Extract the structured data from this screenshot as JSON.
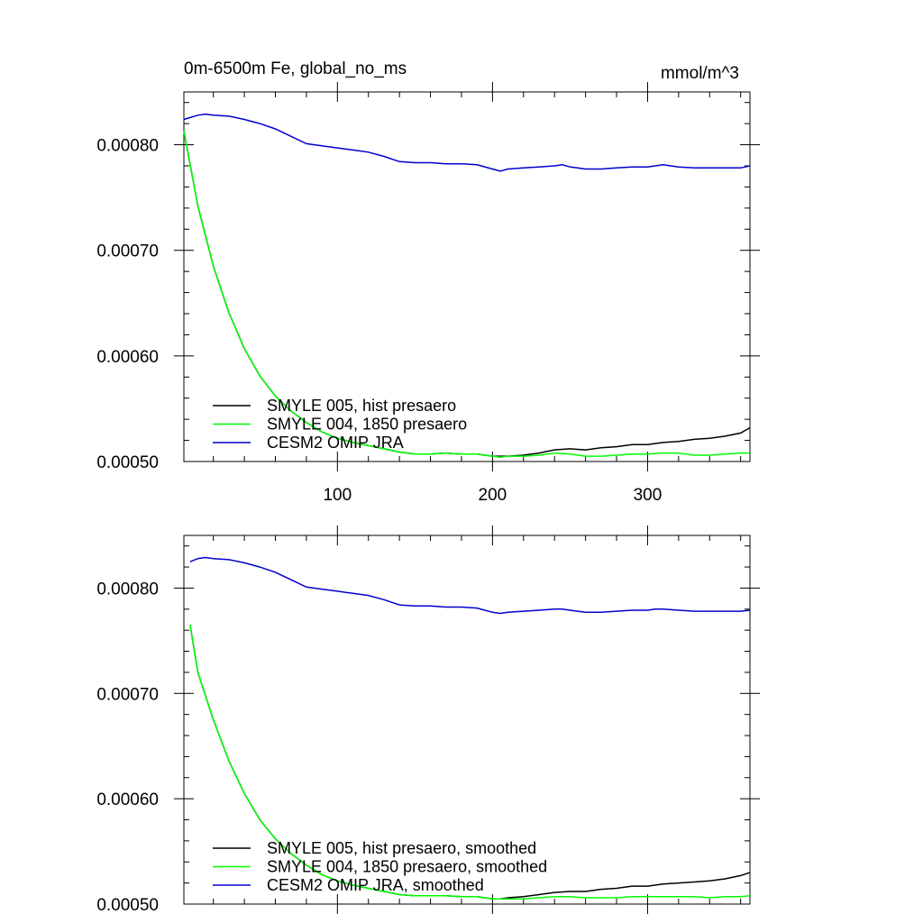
{
  "colors": {
    "black": "#000000",
    "green": "#00ff00",
    "blue": "#0000cc"
  },
  "chart_data": [
    {
      "type": "line",
      "title": "0m-6500m Fe, global_no_ms",
      "units_label": "mmol/m^3",
      "xlabel": "",
      "ylabel": "",
      "xlim": [
        1,
        366
      ],
      "ylim": [
        0.0005,
        0.00085
      ],
      "xticks": [
        100,
        200,
        300
      ],
      "xtick_labels": [
        "100",
        "200",
        "300"
      ],
      "yticks": [
        0.0005,
        0.0006,
        0.0007,
        0.0008
      ],
      "ytick_labels": [
        "0.00050",
        "0.00060",
        "0.00070",
        "0.00080"
      ],
      "legend_position": "bottom-left",
      "grid": false,
      "series": [
        {
          "name": "SMYLE 005, hist presaero",
          "color": "#000000",
          "x": [
            1,
            10,
            20,
            30,
            40,
            50,
            60,
            70,
            80,
            90,
            100,
            110,
            120,
            130,
            140,
            150,
            160,
            170,
            180,
            190,
            200,
            205,
            210,
            220,
            230,
            240,
            250,
            260,
            270,
            280,
            290,
            300,
            310,
            320,
            330,
            340,
            350,
            360,
            366
          ],
          "y": [
            0.000813,
            0.000742,
            0.000685,
            0.000641,
            0.000607,
            0.000581,
            0.000562,
            0.000548,
            0.000537,
            0.000528,
            0.000522,
            0.000518,
            0.000515,
            0.000512,
            0.000509,
            0.000507,
            0.000507,
            0.000508,
            0.000507,
            0.000507,
            0.000505,
            0.000505,
            0.000505,
            0.000506,
            0.000508,
            0.000511,
            0.000512,
            0.000511,
            0.000513,
            0.000514,
            0.000516,
            0.000516,
            0.000518,
            0.000519,
            0.000521,
            0.000522,
            0.000524,
            0.000527,
            0.000532
          ]
        },
        {
          "name": "SMYLE 004, 1850 presaero",
          "color": "#00ff00",
          "x": [
            1,
            10,
            20,
            30,
            40,
            50,
            60,
            70,
            80,
            90,
            100,
            110,
            120,
            130,
            140,
            150,
            160,
            170,
            180,
            190,
            200,
            205,
            210,
            220,
            230,
            240,
            250,
            260,
            270,
            280,
            290,
            300,
            310,
            320,
            330,
            340,
            350,
            360,
            366
          ],
          "y": [
            0.000813,
            0.000742,
            0.000685,
            0.000641,
            0.000607,
            0.000581,
            0.000562,
            0.000548,
            0.000537,
            0.000528,
            0.000522,
            0.000518,
            0.000515,
            0.000512,
            0.000509,
            0.000507,
            0.000507,
            0.000508,
            0.000507,
            0.000507,
            0.000505,
            0.000504,
            0.000505,
            0.000505,
            0.000506,
            0.000508,
            0.000507,
            0.000505,
            0.000505,
            0.000506,
            0.000507,
            0.000507,
            0.000508,
            0.000508,
            0.000506,
            0.000506,
            0.000507,
            0.000508,
            0.000508
          ]
        },
        {
          "name": "CESM2 OMIP JRA",
          "color": "#0000cc",
          "x": [
            1,
            10,
            15,
            20,
            30,
            40,
            50,
            60,
            70,
            80,
            90,
            100,
            110,
            120,
            130,
            140,
            150,
            160,
            170,
            180,
            190,
            200,
            205,
            210,
            220,
            230,
            240,
            245,
            250,
            260,
            270,
            280,
            290,
            300,
            305,
            310,
            320,
            330,
            340,
            350,
            360,
            366
          ],
          "y": [
            0.000824,
            0.000828,
            0.000829,
            0.000828,
            0.000827,
            0.000824,
            0.00082,
            0.000815,
            0.000808,
            0.000801,
            0.000799,
            0.000797,
            0.000795,
            0.000793,
            0.000789,
            0.000784,
            0.000783,
            0.000783,
            0.000782,
            0.000782,
            0.000781,
            0.000777,
            0.000775,
            0.000777,
            0.000778,
            0.000779,
            0.00078,
            0.000781,
            0.000779,
            0.000777,
            0.000777,
            0.000778,
            0.000779,
            0.000779,
            0.00078,
            0.000781,
            0.000779,
            0.000778,
            0.000778,
            0.000778,
            0.000778,
            0.00078
          ]
        }
      ]
    },
    {
      "type": "line",
      "title": "",
      "xlabel": "",
      "ylabel": "",
      "xlim": [
        1,
        366
      ],
      "ylim": [
        0.0005,
        0.00085
      ],
      "xticks": [
        100,
        200,
        300
      ],
      "xtick_labels": [],
      "yticks": [
        0.0005,
        0.0006,
        0.0007,
        0.0008
      ],
      "ytick_labels": [
        "0.00050",
        "0.00060",
        "0.00070",
        "0.00080"
      ],
      "legend_position": "bottom-left",
      "grid": false,
      "series": [
        {
          "name": "SMYLE 005, hist presaero, smoothed",
          "color": "#000000",
          "x": [
            5,
            10,
            20,
            30,
            40,
            50,
            60,
            70,
            80,
            90,
            100,
            110,
            120,
            130,
            140,
            150,
            160,
            170,
            180,
            190,
            200,
            205,
            210,
            220,
            230,
            240,
            250,
            260,
            270,
            280,
            290,
            300,
            310,
            320,
            330,
            340,
            350,
            360,
            366
          ],
          "y": [
            0.000765,
            0.00072,
            0.000675,
            0.000636,
            0.000605,
            0.00058,
            0.000562,
            0.000548,
            0.000537,
            0.000528,
            0.000522,
            0.000518,
            0.000515,
            0.000512,
            0.000509,
            0.000508,
            0.000508,
            0.000508,
            0.000507,
            0.000507,
            0.000505,
            0.000505,
            0.000506,
            0.000507,
            0.000509,
            0.000511,
            0.000512,
            0.000512,
            0.000514,
            0.000515,
            0.000517,
            0.000517,
            0.000519,
            0.00052,
            0.000521,
            0.000522,
            0.000524,
            0.000527,
            0.00053
          ]
        },
        {
          "name": "SMYLE 004, 1850 presaero, smoothed",
          "color": "#00ff00",
          "x": [
            5,
            10,
            20,
            30,
            40,
            50,
            60,
            70,
            80,
            90,
            100,
            110,
            120,
            130,
            140,
            150,
            160,
            170,
            180,
            190,
            200,
            205,
            210,
            220,
            230,
            240,
            250,
            260,
            270,
            280,
            290,
            300,
            310,
            320,
            330,
            340,
            350,
            360,
            366
          ],
          "y": [
            0.000765,
            0.00072,
            0.000675,
            0.000636,
            0.000605,
            0.00058,
            0.000562,
            0.000548,
            0.000537,
            0.000528,
            0.000522,
            0.000518,
            0.000515,
            0.000512,
            0.000509,
            0.000508,
            0.000508,
            0.000508,
            0.000507,
            0.000507,
            0.000505,
            0.000505,
            0.000505,
            0.000505,
            0.000506,
            0.000507,
            0.000507,
            0.000506,
            0.000506,
            0.000506,
            0.000507,
            0.000507,
            0.000507,
            0.000507,
            0.000507,
            0.000506,
            0.000507,
            0.000507,
            0.000508
          ]
        },
        {
          "name": "CESM2 OMIP JRA, smoothed",
          "color": "#0000cc",
          "x": [
            5,
            10,
            15,
            20,
            30,
            40,
            50,
            60,
            70,
            80,
            90,
            100,
            110,
            120,
            130,
            140,
            150,
            160,
            170,
            180,
            190,
            200,
            205,
            210,
            220,
            230,
            240,
            245,
            250,
            260,
            270,
            280,
            290,
            300,
            305,
            310,
            320,
            330,
            340,
            350,
            360,
            366
          ],
          "y": [
            0.000825,
            0.000828,
            0.000829,
            0.000828,
            0.000827,
            0.000824,
            0.00082,
            0.000815,
            0.000808,
            0.000801,
            0.000799,
            0.000797,
            0.000795,
            0.000793,
            0.000789,
            0.000784,
            0.000783,
            0.000783,
            0.000782,
            0.000782,
            0.000781,
            0.000777,
            0.000776,
            0.000777,
            0.000778,
            0.000779,
            0.00078,
            0.00078,
            0.000779,
            0.000777,
            0.000777,
            0.000778,
            0.000779,
            0.000779,
            0.00078,
            0.00078,
            0.000779,
            0.000778,
            0.000778,
            0.000778,
            0.000778,
            0.000779
          ]
        }
      ]
    }
  ]
}
